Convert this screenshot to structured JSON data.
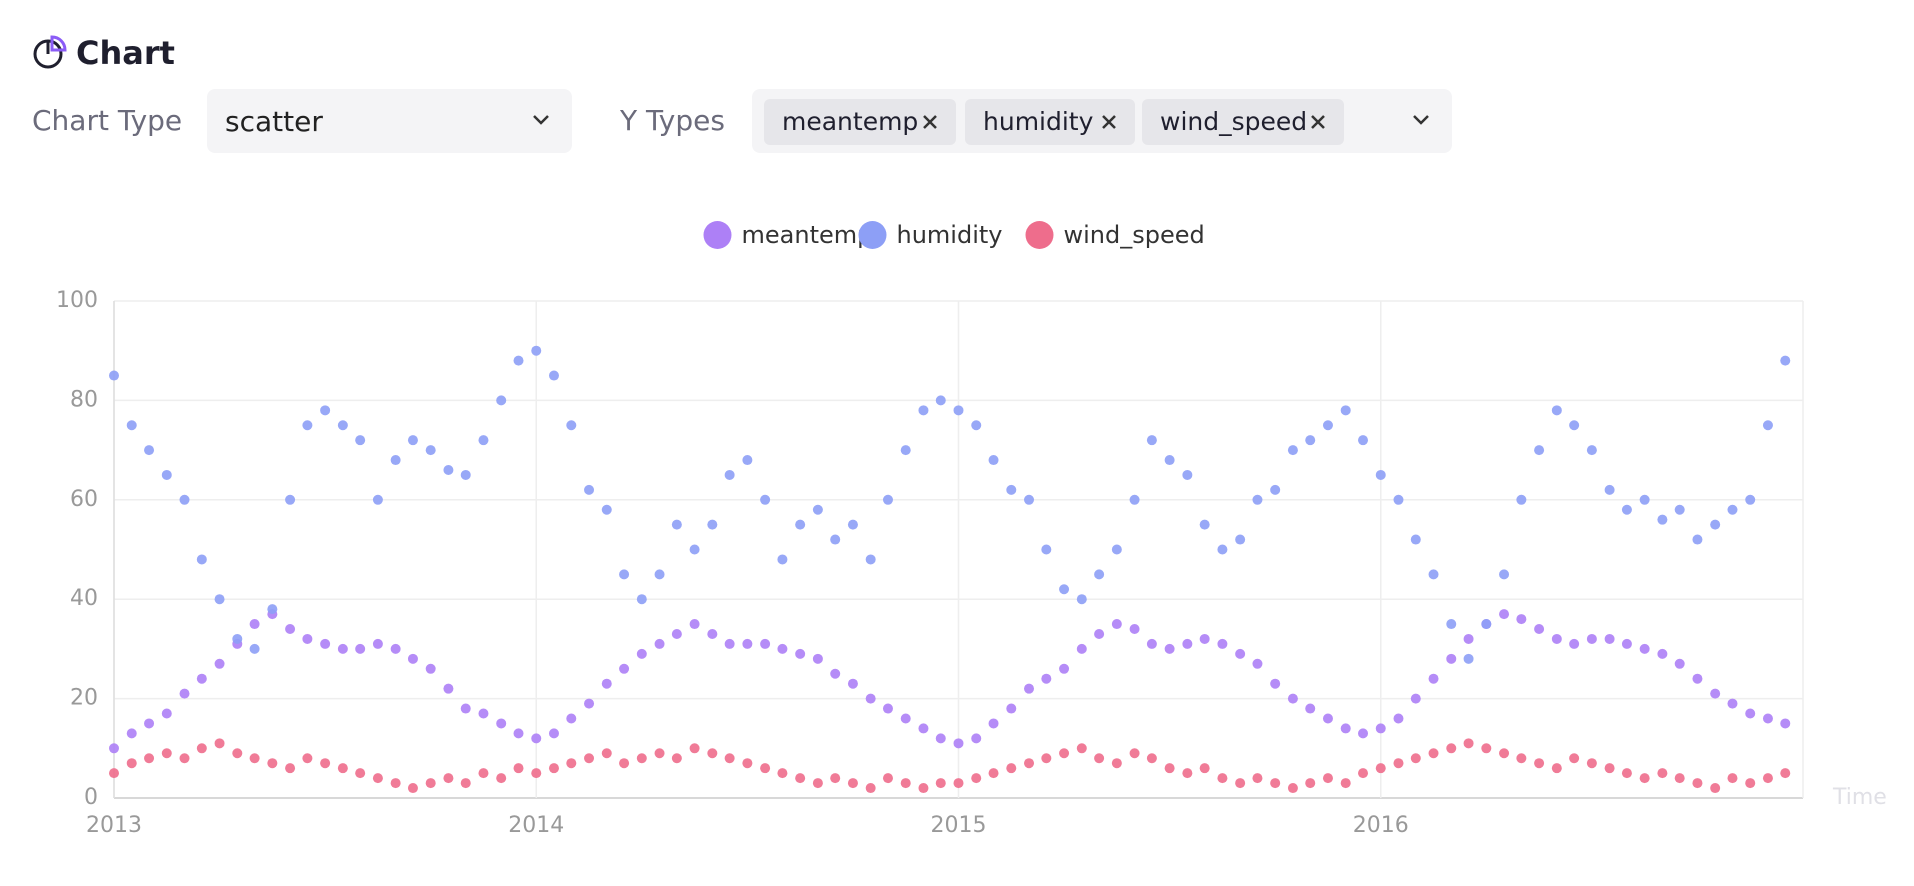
{
  "header": {
    "title": "Chart"
  },
  "controls": {
    "chart_type": {
      "label": "Chart Type",
      "value": "scatter"
    },
    "y_types": {
      "label": "Y Types",
      "tags": [
        "meantemp",
        "humidity",
        "wind_speed"
      ]
    }
  },
  "chart_data": {
    "type": "scatter",
    "x_label": "Time",
    "x": [
      2013,
      2013.042,
      2013.083,
      2013.125,
      2013.167,
      2013.208,
      2013.25,
      2013.292,
      2013.333,
      2013.375,
      2013.417,
      2013.458,
      2013.5,
      2013.542,
      2013.583,
      2013.625,
      2013.667,
      2013.708,
      2013.75,
      2013.792,
      2013.833,
      2013.875,
      2013.917,
      2013.958,
      2014,
      2014.042,
      2014.083,
      2014.125,
      2014.167,
      2014.208,
      2014.25,
      2014.292,
      2014.333,
      2014.375,
      2014.417,
      2014.458,
      2014.5,
      2014.542,
      2014.583,
      2014.625,
      2014.667,
      2014.708,
      2014.75,
      2014.792,
      2014.833,
      2014.875,
      2014.917,
      2014.958,
      2015,
      2015.042,
      2015.083,
      2015.125,
      2015.167,
      2015.208,
      2015.25,
      2015.292,
      2015.333,
      2015.375,
      2015.417,
      2015.458,
      2015.5,
      2015.542,
      2015.583,
      2015.625,
      2015.667,
      2015.708,
      2015.75,
      2015.792,
      2015.833,
      2015.875,
      2015.917,
      2015.958,
      2016,
      2016.042,
      2016.083,
      2016.125,
      2016.167,
      2016.208,
      2016.25,
      2016.292,
      2016.333,
      2016.375,
      2016.417,
      2016.458,
      2016.5,
      2016.542,
      2016.583,
      2016.625,
      2016.667,
      2016.708,
      2016.75,
      2016.792,
      2016.833,
      2016.875,
      2016.917,
      2016.958
    ],
    "series": [
      {
        "name": "meantemp",
        "color": "#ad80f6",
        "values": [
          10,
          13,
          15,
          17,
          21,
          24,
          27,
          31,
          35,
          37,
          34,
          32,
          31,
          30,
          30,
          31,
          30,
          28,
          26,
          22,
          18,
          17,
          15,
          13,
          12,
          13,
          16,
          19,
          23,
          26,
          29,
          31,
          33,
          35,
          33,
          31,
          31,
          31,
          30,
          29,
          28,
          25,
          23,
          20,
          18,
          16,
          14,
          12,
          11,
          12,
          15,
          18,
          22,
          24,
          26,
          30,
          33,
          35,
          34,
          31,
          30,
          31,
          32,
          31,
          29,
          27,
          23,
          20,
          18,
          16,
          14,
          13,
          14,
          16,
          20,
          24,
          28,
          32,
          35,
          37,
          36,
          34,
          32,
          31,
          32,
          32,
          31,
          30,
          29,
          27,
          24,
          21,
          19,
          17,
          16,
          15
        ]
      },
      {
        "name": "humidity",
        "color": "#8d9ff6",
        "values": [
          85,
          75,
          70,
          65,
          60,
          48,
          40,
          32,
          30,
          38,
          60,
          75,
          78,
          75,
          72,
          60,
          68,
          72,
          70,
          66,
          65,
          72,
          80,
          88,
          90,
          85,
          75,
          62,
          58,
          45,
          40,
          45,
          55,
          50,
          55,
          65,
          68,
          60,
          48,
          55,
          58,
          52,
          55,
          48,
          60,
          70,
          78,
          80,
          78,
          75,
          68,
          62,
          60,
          50,
          42,
          40,
          45,
          50,
          60,
          72,
          68,
          65,
          55,
          50,
          52,
          60,
          62,
          70,
          72,
          75,
          78,
          72,
          65,
          60,
          52,
          45,
          35,
          28,
          35,
          45,
          60,
          70,
          78,
          75,
          70,
          62,
          58,
          60,
          56,
          58,
          52,
          55,
          58,
          60,
          75,
          88
        ]
      },
      {
        "name": "wind_speed",
        "color": "#ee6d8c",
        "values": [
          5,
          7,
          8,
          9,
          8,
          10,
          11,
          9,
          8,
          7,
          6,
          8,
          7,
          6,
          5,
          4,
          3,
          2,
          3,
          4,
          3,
          5,
          4,
          6,
          5,
          6,
          7,
          8,
          9,
          7,
          8,
          9,
          8,
          10,
          9,
          8,
          7,
          6,
          5,
          4,
          3,
          4,
          3,
          2,
          4,
          3,
          2,
          3,
          3,
          4,
          5,
          6,
          7,
          8,
          9,
          10,
          8,
          7,
          9,
          8,
          6,
          5,
          6,
          4,
          3,
          4,
          3,
          2,
          3,
          4,
          3,
          5,
          6,
          7,
          8,
          9,
          10,
          11,
          10,
          9,
          8,
          7,
          6,
          8,
          7,
          6,
          5,
          4,
          5,
          4,
          3,
          2,
          4,
          3,
          4,
          5
        ]
      }
    ],
    "xlim": [
      2013,
      2017
    ],
    "xticks": [
      2013,
      2014,
      2015,
      2016
    ],
    "ylim": [
      0,
      100
    ],
    "yticks": [
      0,
      20,
      40,
      60,
      80,
      100
    ],
    "grid": true
  }
}
